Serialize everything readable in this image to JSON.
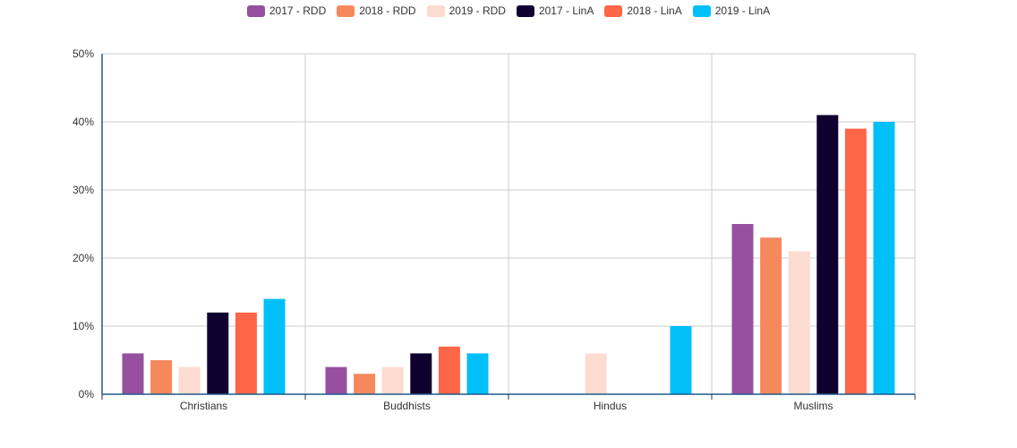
{
  "chart_data": {
    "type": "bar",
    "categories": [
      "Christians",
      "Buddhists",
      "Hindus",
      "Muslims"
    ],
    "series": [
      {
        "name": "2017 - RDD",
        "color": "#96509f",
        "values": [
          6,
          4,
          0,
          25
        ]
      },
      {
        "name": "2018 - RDD",
        "color": "#f5895c",
        "values": [
          5,
          3,
          0,
          23
        ]
      },
      {
        "name": "2019 - RDD",
        "color": "#fcdbd0",
        "values": [
          4,
          4,
          6,
          21
        ]
      },
      {
        "name": "2017 - LinA",
        "color": "#10002f",
        "values": [
          12,
          6,
          0,
          41
        ]
      },
      {
        "name": "2018 - LinA",
        "color": "#fe6648",
        "values": [
          12,
          7,
          0,
          39
        ]
      },
      {
        "name": "2019 - LinA",
        "color": "#00bff9",
        "values": [
          14,
          6,
          10,
          40
        ]
      }
    ],
    "ylim": [
      0,
      50
    ],
    "yticks": [
      "0%",
      "10%",
      "20%",
      "30%",
      "40%",
      "50%"
    ],
    "ytick_values": [
      0,
      10,
      20,
      30,
      40,
      50
    ],
    "grid": true,
    "legend_position": "top-center",
    "title": "",
    "xlabel": "",
    "ylabel": ""
  },
  "colors": {
    "axis": "#1f5a8c",
    "grid": "#cccccc"
  }
}
